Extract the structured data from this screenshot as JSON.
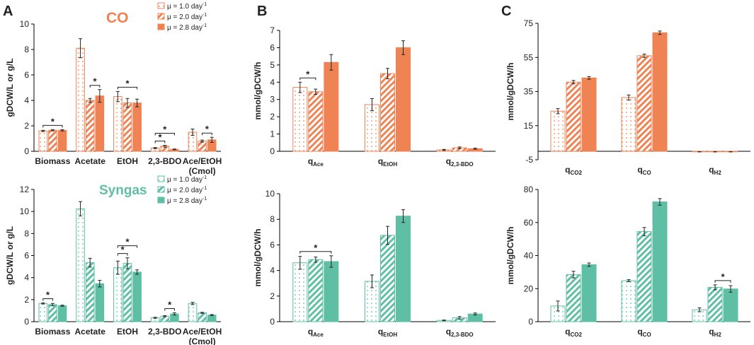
{
  "panel_labels": [
    "A",
    "B",
    "C"
  ],
  "gas_titles": {
    "co": "CO",
    "syngas": "Syngas"
  },
  "legend": {
    "labels": [
      "μ = 1.0 day",
      "μ = 2.0 day",
      "μ = 2.8 day"
    ],
    "unit_superscript": "-1"
  },
  "colors": {
    "co": "#EF8354",
    "syngas": "#5FBFA4",
    "axis": "#000000",
    "text": "#222222"
  },
  "chart_data": [
    {
      "id": "A_CO",
      "type": "bar",
      "title": "CO",
      "ylabel": "gDCW/L or g/L",
      "ylim": [
        0,
        10
      ],
      "yticks": [
        "0",
        "2",
        "4",
        "6",
        "8",
        "10"
      ],
      "categories": [
        "Biomass",
        "Acetate",
        "EtOH",
        "2,3-BDO",
        "Ace/EtOH\n(Cmol)"
      ],
      "series": [
        {
          "name": "μ = 1.0 day-1",
          "values": [
            1.6,
            8.1,
            4.3,
            0.25,
            1.5
          ],
          "errors": [
            0.05,
            0.75,
            0.4,
            0.05,
            0.25
          ]
        },
        {
          "name": "μ = 2.0 day-1",
          "values": [
            1.65,
            4.0,
            3.8,
            0.4,
            0.8
          ],
          "errors": [
            0.05,
            0.15,
            0.35,
            0.07,
            0.08
          ]
        },
        {
          "name": "μ = 2.8 day-1",
          "values": [
            1.65,
            4.35,
            3.8,
            0.15,
            0.9
          ],
          "errors": [
            0.05,
            0.5,
            0.3,
            0.03,
            0.2
          ]
        }
      ],
      "significance": [
        {
          "category": 0,
          "from": 0,
          "to": 2,
          "label": "*"
        },
        {
          "category": 1,
          "from": 1,
          "to": 2,
          "label": "*"
        },
        {
          "category": 2,
          "from": 0,
          "to": 2,
          "label": "*"
        },
        {
          "category": 3,
          "from": 0,
          "to": 1,
          "label": "*"
        },
        {
          "category": 3,
          "from": 0,
          "to": 2,
          "label": "*"
        },
        {
          "category": 4,
          "from": 1,
          "to": 2,
          "label": "*"
        }
      ]
    },
    {
      "id": "B_CO",
      "type": "bar",
      "ylabel": "mmol/gDCW/h",
      "ylim": [
        0,
        7
      ],
      "yticks": [
        "0",
        "1",
        "2",
        "3",
        "4",
        "5",
        "6",
        "7"
      ],
      "categories": [
        {
          "base": "q",
          "sub": "Ace"
        },
        {
          "base": "q",
          "sub": "EtOH"
        },
        {
          "base": "q",
          "sub": "2,3-BDO"
        }
      ],
      "series": [
        {
          "name": "μ = 1.0 day-1",
          "values": [
            3.7,
            2.7,
            0.08
          ],
          "errors": [
            0.3,
            0.35,
            0.03
          ]
        },
        {
          "name": "μ = 2.0 day-1",
          "values": [
            3.45,
            4.5,
            0.2
          ],
          "errors": [
            0.15,
            0.3,
            0.05
          ]
        },
        {
          "name": "μ = 2.8 day-1",
          "values": [
            5.15,
            6.0,
            0.15
          ],
          "errors": [
            0.45,
            0.4,
            0.03
          ]
        }
      ],
      "significance": [
        {
          "category": 0,
          "from": 0,
          "to": 1,
          "label": "*"
        }
      ]
    },
    {
      "id": "C_CO",
      "type": "bar",
      "ylabel": "mmol/gDCW/h",
      "ylim": [
        -5,
        75
      ],
      "yticks": [
        "-5",
        "15",
        "35",
        "55",
        "75"
      ],
      "categories": [
        {
          "base": "q",
          "sub": "CO2"
        },
        {
          "base": "q",
          "sub": "CO"
        },
        {
          "base": "q",
          "sub": "H2"
        }
      ],
      "series": [
        {
          "name": "μ = 1.0 day-1",
          "values": [
            23.5,
            31.5,
            -0.3
          ],
          "errors": [
            1.5,
            1.5,
            0.1
          ]
        },
        {
          "name": "μ = 2.0 day-1",
          "values": [
            40.5,
            56,
            -0.3
          ],
          "errors": [
            1.0,
            1.0,
            0.1
          ]
        },
        {
          "name": "μ = 2.8 day-1",
          "values": [
            43,
            69.5,
            -0.3
          ],
          "errors": [
            0.8,
            1.0,
            0.1
          ]
        }
      ],
      "significance": []
    },
    {
      "id": "A_Syngas",
      "type": "bar",
      "title": "Syngas",
      "ylabel": "gDCW/L or g/L",
      "ylim": [
        0,
        12
      ],
      "yticks": [
        "0",
        "2",
        "4",
        "6",
        "8",
        "10",
        "12"
      ],
      "categories": [
        "Biomass",
        "Acetate",
        "EtOH",
        "2,3-BDO",
        "Ace/EtOH\n(Cmol)"
      ],
      "series": [
        {
          "name": "μ = 1.0 day-1",
          "values": [
            1.65,
            10.25,
            4.9,
            0.35,
            1.65
          ],
          "errors": [
            0.05,
            0.65,
            0.6,
            0.05,
            0.1
          ]
        },
        {
          "name": "μ = 2.0 day-1",
          "values": [
            1.55,
            5.35,
            5.3,
            0.5,
            0.8
          ],
          "errors": [
            0.1,
            0.4,
            0.5,
            0.05,
            0.05
          ]
        },
        {
          "name": "μ = 2.8 day-1",
          "values": [
            1.45,
            3.45,
            4.5,
            0.7,
            0.6
          ],
          "errors": [
            0.05,
            0.3,
            0.2,
            0.1,
            0.05
          ]
        }
      ],
      "significance": [
        {
          "category": 0,
          "from": 0,
          "to": 1,
          "label": "*"
        },
        {
          "category": 2,
          "from": 0,
          "to": 1,
          "label": "*"
        },
        {
          "category": 2,
          "from": 0,
          "to": 2,
          "label": "*"
        },
        {
          "category": 3,
          "from": 1,
          "to": 2,
          "label": "*"
        }
      ]
    },
    {
      "id": "B_Syngas",
      "type": "bar",
      "ylabel": "mmol/gDCW/h",
      "ylim": [
        0,
        10
      ],
      "yticks": [
        "0",
        "2",
        "4",
        "6",
        "8",
        "10"
      ],
      "categories": [
        {
          "base": "q",
          "sub": "Ace"
        },
        {
          "base": "q",
          "sub": "EtOH"
        },
        {
          "base": "q",
          "sub": "2,3-BDO"
        }
      ],
      "series": [
        {
          "name": "μ = 1.0 day-1",
          "values": [
            4.6,
            3.15,
            0.1
          ],
          "errors": [
            0.5,
            0.5,
            0.03
          ]
        },
        {
          "name": "μ = 2.0 day-1",
          "values": [
            4.85,
            6.75,
            0.3
          ],
          "errors": [
            0.2,
            0.7,
            0.1
          ]
        },
        {
          "name": "μ = 2.8 day-1",
          "values": [
            4.7,
            8.25,
            0.6
          ],
          "errors": [
            0.45,
            0.5,
            0.08
          ]
        }
      ],
      "significance": [
        {
          "category": 0,
          "from": 0,
          "to": 2,
          "label": "*"
        }
      ]
    },
    {
      "id": "C_Syngas",
      "type": "bar",
      "ylabel": "mmol/gDCW/h",
      "ylim": [
        0,
        80
      ],
      "yticks": [
        "0",
        "20",
        "40",
        "60",
        "80"
      ],
      "categories": [
        {
          "base": "q",
          "sub": "CO2"
        },
        {
          "base": "q",
          "sub": "CO"
        },
        {
          "base": "q",
          "sub": "H2"
        }
      ],
      "series": [
        {
          "name": "μ = 1.0 day-1",
          "values": [
            9.5,
            24.8,
            7.2
          ],
          "errors": [
            3.0,
            0.6,
            1.2
          ]
        },
        {
          "name": "μ = 2.0 day-1",
          "values": [
            28.5,
            54.5,
            20.8
          ],
          "errors": [
            2.0,
            2.5,
            1.5
          ]
        },
        {
          "name": "μ = 2.8 day-1",
          "values": [
            34.5,
            72.5,
            19.8
          ],
          "errors": [
            1.0,
            2.0,
            2.0
          ]
        }
      ],
      "significance": [
        {
          "category": 2,
          "from": 1,
          "to": 2,
          "label": "*"
        }
      ]
    }
  ]
}
